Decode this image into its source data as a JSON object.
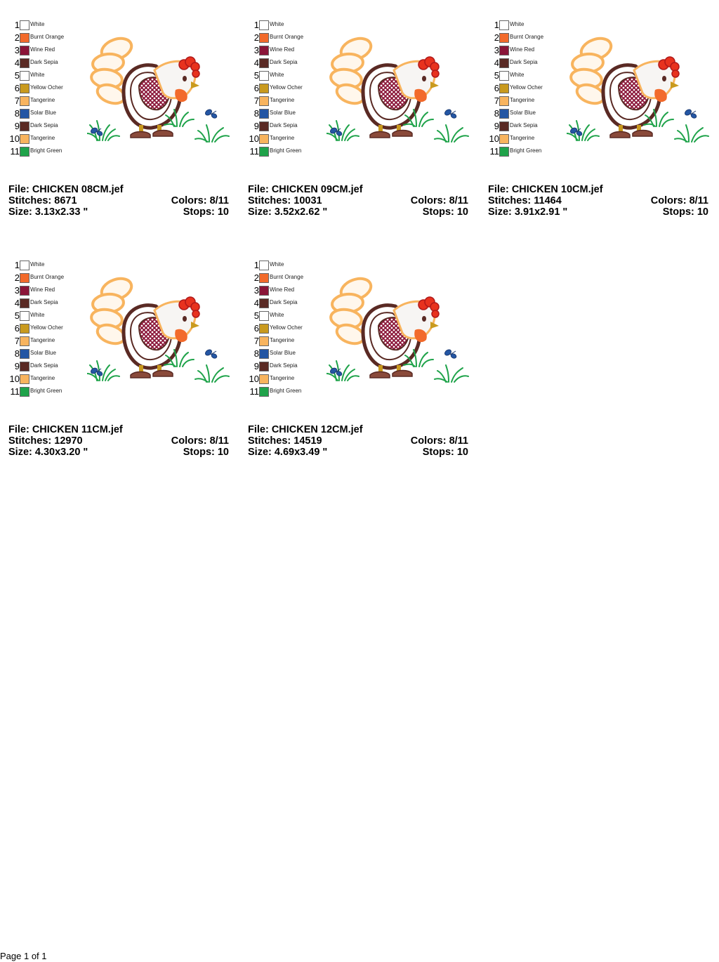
{
  "palette": [
    {
      "num": "1",
      "name": "White",
      "hex": "#FFFFFF"
    },
    {
      "num": "2",
      "name": "Burnt Orange",
      "hex": "#F26A2B"
    },
    {
      "num": "3",
      "name": "Wine Red",
      "hex": "#8A1538"
    },
    {
      "num": "4",
      "name": "Dark Sepia",
      "hex": "#5A2A24"
    },
    {
      "num": "5",
      "name": "White",
      "hex": "#FFFFFF"
    },
    {
      "num": "6",
      "name": "Yellow Ocher",
      "hex": "#C99A1E"
    },
    {
      "num": "7",
      "name": "Tangerine",
      "hex": "#F8B45E"
    },
    {
      "num": "8",
      "name": "Solar Blue",
      "hex": "#2456A4"
    },
    {
      "num": "9",
      "name": "Dark Sepia",
      "hex": "#5A2A24"
    },
    {
      "num": "10",
      "name": "Tangerine",
      "hex": "#F8B45E"
    },
    {
      "num": "11",
      "name": "Bright Green",
      "hex": "#1FA34A"
    }
  ],
  "designs": [
    {
      "file": "File: CHICKEN 08CM.jef",
      "stitches": "Stitches: 8671",
      "colors": "Colors: 8/11",
      "size": "Size: 3.13x2.33 \"",
      "stops": "Stops: 10"
    },
    {
      "file": "File: CHICKEN 09CM.jef",
      "stitches": "Stitches: 10031",
      "colors": "Colors: 8/11",
      "size": "Size: 3.52x2.62 \"",
      "stops": "Stops: 10"
    },
    {
      "file": "File: CHICKEN 10CM.jef",
      "stitches": "Stitches: 11464",
      "colors": "Colors: 8/11",
      "size": "Size: 3.91x2.91 \"",
      "stops": "Stops: 10"
    },
    {
      "file": "File: CHICKEN 11CM.jef",
      "stitches": "Stitches: 12970",
      "colors": "Colors: 8/11",
      "size": "Size: 4.30x3.20 \"",
      "stops": "Stops: 10"
    },
    {
      "file": "File: CHICKEN 12CM.jef",
      "stitches": "Stitches: 14519",
      "colors": "Colors: 8/11",
      "size": "Size: 4.69x3.49 \"",
      "stops": "Stops: 10"
    }
  ],
  "footer": {
    "text": "Page 1 of 1"
  }
}
